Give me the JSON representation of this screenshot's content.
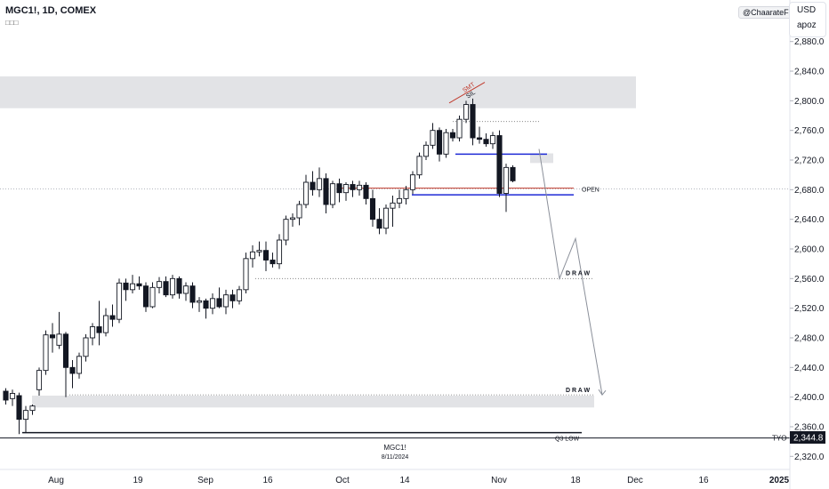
{
  "header": {
    "symbol_title": "MGC1!, 1D, COMEX",
    "sub_icons": "□□□"
  },
  "watermark": "@ChaarateFX",
  "currency_panel": {
    "currency": "USD",
    "user": "apoz"
  },
  "center_labels": {
    "symbol": "MGC1!",
    "date": "8/11/2024"
  },
  "annotations": {
    "smt": "SMT",
    "sil": "SIL",
    "open": "OPEN",
    "draw_upper": "D R A W",
    "draw_lower": "D R A W",
    "q3_low": "Q3 LOW",
    "tyo": "TYO"
  },
  "colors": {
    "candle": "#131722",
    "blue_level": "#1e2ad6",
    "red_level": "#c0392b",
    "zone": "#e2e3e6",
    "axis_text": "#131722",
    "price_tag_bg": "#131722"
  },
  "chart_data": {
    "type": "candlestick",
    "instrument": "MGC1!",
    "timeframe": "1D",
    "exchange": "COMEX",
    "y_ticks": [
      2880,
      2840,
      2800,
      2760,
      2720,
      2680,
      2640,
      2600,
      2560,
      2520,
      2480,
      2440,
      2400,
      2360,
      2320
    ],
    "y_tick_labels": [
      "2,880.0",
      "2,840.0",
      "2,800.0",
      "2,760.0",
      "2,720.0",
      "2,680.0",
      "2,640.0",
      "2,600.0",
      "2,560.0",
      "2,520.0",
      "2,480.0",
      "2,440.0",
      "2,400.0",
      "2,360.0",
      "2,320.0"
    ],
    "x_tick_labels": [
      "Aug",
      "19",
      "Sep",
      "16",
      "Oct",
      "14",
      "Nov",
      "18",
      "Dec",
      "16",
      "2025"
    ],
    "ylim": [
      2305,
      2895
    ],
    "price_tag": {
      "label": "2,344.8",
      "value": 2344.8
    },
    "levels": {
      "tyo": 2344.8,
      "q3_low": 2352,
      "open": 2681,
      "draw_upper": 2560,
      "draw_lower": 2403
    },
    "zones": [
      {
        "name": "premium-zone",
        "top": 2833,
        "bottom": 2790
      },
      {
        "name": "lower-zone",
        "top": 2402,
        "bottom": 2386
      },
      {
        "name": "small-zone",
        "top": 2729,
        "bottom": 2716
      }
    ],
    "ohlc": [
      [
        2408,
        2412,
        2390,
        2396
      ],
      [
        2398,
        2410,
        2388,
        2405
      ],
      [
        2402,
        2406,
        2350,
        2370
      ],
      [
        2370,
        2388,
        2352,
        2382
      ],
      [
        2382,
        2390,
        2376,
        2388
      ],
      [
        2410,
        2440,
        2402,
        2436
      ],
      [
        2436,
        2490,
        2430,
        2484
      ],
      [
        2484,
        2500,
        2460,
        2480
      ],
      [
        2470,
        2515,
        2465,
        2485
      ],
      [
        2485,
        2488,
        2400,
        2440
      ],
      [
        2440,
        2450,
        2412,
        2432
      ],
      [
        2432,
        2460,
        2425,
        2455
      ],
      [
        2455,
        2485,
        2448,
        2480
      ],
      [
        2480,
        2500,
        2470,
        2495
      ],
      [
        2495,
        2530,
        2470,
        2487
      ],
      [
        2487,
        2520,
        2482,
        2510
      ],
      [
        2510,
        2525,
        2495,
        2505
      ],
      [
        2505,
        2560,
        2500,
        2554
      ],
      [
        2554,
        2560,
        2530,
        2545
      ],
      [
        2545,
        2565,
        2540,
        2553
      ],
      [
        2553,
        2563,
        2545,
        2550
      ],
      [
        2550,
        2555,
        2515,
        2522
      ],
      [
        2522,
        2555,
        2520,
        2548
      ],
      [
        2548,
        2562,
        2540,
        2556
      ],
      [
        2556,
        2563,
        2535,
        2538
      ],
      [
        2538,
        2565,
        2533,
        2560
      ],
      [
        2560,
        2563,
        2533,
        2540
      ],
      [
        2540,
        2555,
        2530,
        2550
      ],
      [
        2550,
        2555,
        2520,
        2528
      ],
      [
        2528,
        2535,
        2515,
        2530
      ],
      [
        2530,
        2533,
        2506,
        2520
      ],
      [
        2520,
        2540,
        2512,
        2533
      ],
      [
        2533,
        2548,
        2520,
        2522
      ],
      [
        2522,
        2545,
        2512,
        2538
      ],
      [
        2538,
        2545,
        2520,
        2530
      ],
      [
        2530,
        2550,
        2525,
        2545
      ],
      [
        2545,
        2595,
        2540,
        2587
      ],
      [
        2587,
        2605,
        2575,
        2596
      ],
      [
        2596,
        2610,
        2590,
        2598
      ],
      [
        2598,
        2610,
        2570,
        2585
      ],
      [
        2585,
        2595,
        2575,
        2580
      ],
      [
        2580,
        2620,
        2573,
        2612
      ],
      [
        2612,
        2645,
        2605,
        2640
      ],
      [
        2640,
        2648,
        2630,
        2642
      ],
      [
        2642,
        2665,
        2632,
        2660
      ],
      [
        2660,
        2700,
        2655,
        2690
      ],
      [
        2690,
        2705,
        2672,
        2680
      ],
      [
        2680,
        2710,
        2670,
        2695
      ],
      [
        2695,
        2702,
        2648,
        2660
      ],
      [
        2660,
        2692,
        2655,
        2688
      ],
      [
        2688,
        2695,
        2663,
        2676
      ],
      [
        2676,
        2690,
        2665,
        2687
      ],
      [
        2687,
        2692,
        2670,
        2680
      ],
      [
        2680,
        2692,
        2672,
        2686
      ],
      [
        2686,
        2690,
        2660,
        2668
      ],
      [
        2668,
        2680,
        2630,
        2640
      ],
      [
        2640,
        2655,
        2620,
        2628
      ],
      [
        2628,
        2660,
        2620,
        2655
      ],
      [
        2655,
        2672,
        2630,
        2662
      ],
      [
        2662,
        2680,
        2655,
        2668
      ],
      [
        2668,
        2685,
        2660,
        2680
      ],
      [
        2680,
        2705,
        2674,
        2700
      ],
      [
        2700,
        2730,
        2695,
        2725
      ],
      [
        2725,
        2745,
        2720,
        2740
      ],
      [
        2740,
        2770,
        2735,
        2760
      ],
      [
        2760,
        2764,
        2718,
        2728
      ],
      [
        2728,
        2762,
        2723,
        2757
      ],
      [
        2757,
        2762,
        2745,
        2750
      ],
      [
        2750,
        2780,
        2745,
        2775
      ],
      [
        2775,
        2800,
        2770,
        2795
      ],
      [
        2795,
        2803,
        2740,
        2750
      ],
      [
        2750,
        2765,
        2742,
        2748
      ],
      [
        2748,
        2756,
        2738,
        2742
      ],
      [
        2742,
        2758,
        2735,
        2753
      ],
      [
        2753,
        2760,
        2670,
        2675
      ],
      [
        2675,
        2715,
        2650,
        2710
      ],
      [
        2710,
        2713,
        2690,
        2692
      ]
    ]
  }
}
